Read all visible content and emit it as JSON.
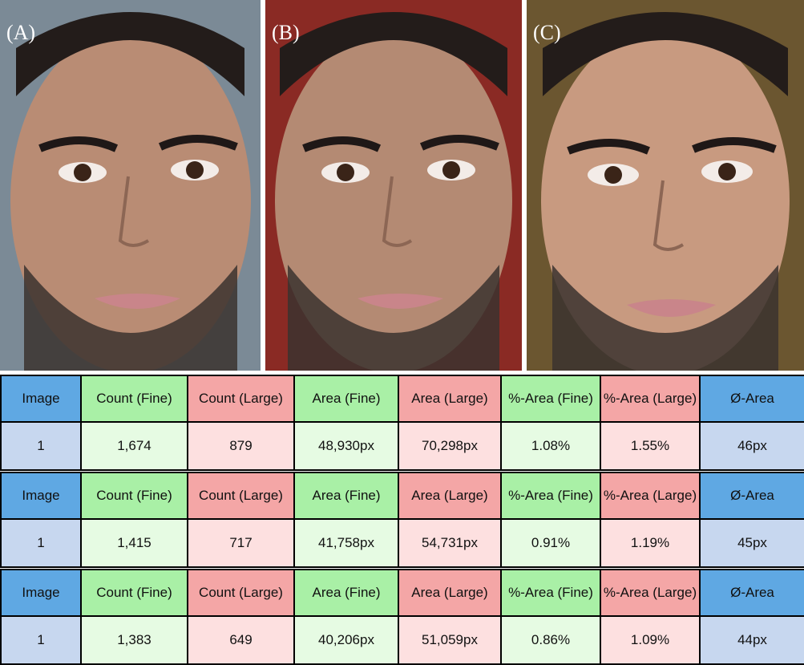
{
  "panels": [
    "(A)",
    "(B)",
    "(C)"
  ],
  "headers": [
    "Image",
    "Count (Fine)",
    "Count (Large)",
    "Area (Fine)",
    "Area (Large)",
    "%-Area (Fine)",
    "%-Area (Large)",
    "Ø-Area"
  ],
  "tables": [
    {
      "row": [
        "1",
        "1,674",
        "879",
        "48,930px",
        "70,298px",
        "1.08%",
        "1.55%",
        "46px"
      ]
    },
    {
      "row": [
        "1",
        "1,415",
        "717",
        "41,758px",
        "54,731px",
        "0.91%",
        "1.19%",
        "45px"
      ]
    },
    {
      "row": [
        "1",
        "1,383",
        "649",
        "40,206px",
        "51,059px",
        "0.86%",
        "1.09%",
        "44px"
      ]
    }
  ],
  "colors": {
    "header_blue": "#5fa8e3",
    "header_green": "#a9f0a6",
    "header_red": "#f4a6a6",
    "value_blue": "#c7d7ef",
    "value_green": "#e6fbe3",
    "value_red": "#fde0e0"
  }
}
